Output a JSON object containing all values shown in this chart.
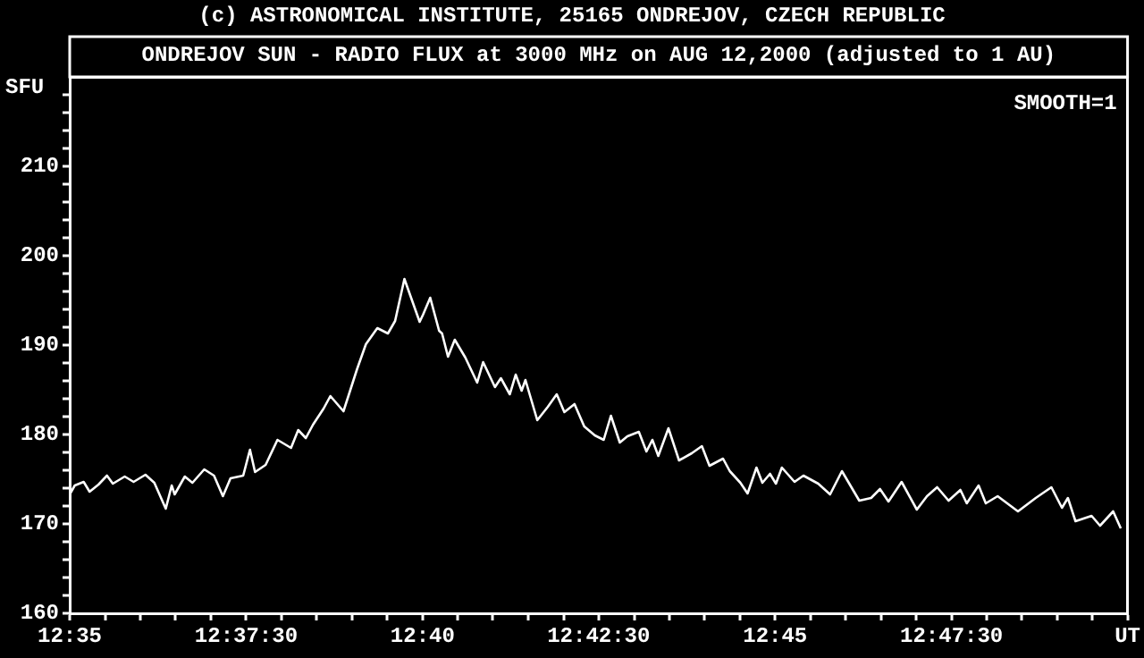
{
  "chart_data": {
    "type": "line",
    "title": "ONDREJOV SUN - RADIO FLUX at 3000 MHz on AUG 12,2000 (adjusted to 1 AU)",
    "ylabel": "SFU",
    "annotations": [
      "(c) ASTRONOMICAL INSTITUTE, 25165 ONDREJOV, CZECH REPUBLIC",
      "SMOOTH=1"
    ],
    "x": [
      12.5833,
      12.5845,
      12.5866,
      12.588,
      12.5901,
      12.5921,
      12.5935,
      12.5963,
      12.5984,
      12.6012,
      12.6033,
      12.606,
      12.6074,
      12.6081,
      12.6105,
      12.6123,
      12.6151,
      12.6174,
      12.6195,
      12.6213,
      12.6243,
      12.6259,
      12.6271,
      12.6296,
      12.6324,
      12.6356,
      12.6373,
      12.6391,
      12.6408,
      12.6433,
      12.6449,
      12.648,
      12.6512,
      12.6533,
      12.656,
      12.6585,
      12.6602,
      12.6624,
      12.666,
      12.6668,
      12.6685,
      12.6706,
      12.6713,
      12.6727,
      12.6743,
      12.6768,
      12.6796,
      12.681,
      12.6838,
      12.6852,
      12.6873,
      12.6887,
      12.6901,
      12.691,
      12.6938,
      12.6963,
      12.6984,
      12.7002,
      12.7026,
      12.7049,
      12.7074,
      12.7095,
      12.7112,
      12.7133,
      12.7151,
      12.7178,
      12.7196,
      12.721,
      12.7224,
      12.7248,
      12.7273,
      12.7303,
      12.7327,
      12.7345,
      12.7377,
      12.7393,
      12.7418,
      12.7435,
      12.7456,
      12.747,
      12.7488,
      12.7502,
      12.7516,
      12.7546,
      12.7567,
      12.7602,
      12.763,
      12.7658,
      12.7699,
      12.7727,
      12.7748,
      12.7768,
      12.7799,
      12.7835,
      12.7859,
      12.7883,
      12.791,
      12.7938,
      12.7953,
      12.7981,
      12.7998,
      12.8026,
      12.8074,
      12.8116,
      12.8153,
      12.8178,
      12.8192,
      12.821,
      12.8248,
      12.8268,
      12.8299,
      12.8317
    ],
    "series": [
      {
        "color": "#ffffff",
        "values": [
          173.3,
          174.3,
          174.7,
          173.6,
          174.4,
          175.4,
          174.5,
          175.3,
          174.7,
          175.5,
          174.6,
          171.7,
          174.3,
          173.3,
          175.3,
          174.6,
          176.1,
          175.4,
          173.1,
          175.1,
          175.4,
          178.3,
          175.8,
          176.6,
          179.4,
          178.5,
          180.5,
          179.6,
          181.1,
          182.9,
          184.3,
          182.6,
          187.3,
          190.1,
          191.9,
          191.3,
          192.7,
          197.4,
          192.6,
          193.4,
          195.3,
          191.6,
          191.3,
          188.7,
          190.6,
          188.6,
          185.8,
          188.1,
          185.3,
          186.3,
          184.5,
          186.7,
          184.9,
          186.1,
          181.6,
          183.1,
          184.5,
          182.5,
          183.4,
          180.9,
          179.9,
          179.4,
          182.1,
          179.1,
          179.8,
          180.3,
          178.1,
          179.4,
          177.6,
          180.7,
          177.1,
          177.9,
          178.7,
          176.5,
          177.3,
          175.9,
          174.6,
          173.4,
          176.3,
          174.6,
          175.6,
          174.5,
          176.3,
          174.7,
          175.4,
          174.5,
          173.3,
          175.9,
          172.6,
          172.9,
          173.9,
          172.5,
          174.7,
          171.6,
          173.1,
          174.1,
          172.6,
          173.8,
          172.3,
          174.3,
          172.3,
          173.1,
          171.4,
          172.9,
          174.1,
          171.8,
          172.9,
          170.3,
          170.9,
          169.8,
          171.4,
          169.5
        ]
      }
    ],
    "xlim": [
      12.5833,
      12.8333
    ],
    "xticks": [
      {
        "value": 12.5833,
        "label": "12:35"
      },
      {
        "value": 12.5917,
        "label": null
      },
      {
        "value": 12.6,
        "label": null
      },
      {
        "value": 12.6083,
        "label": null
      },
      {
        "value": 12.6167,
        "label": null
      },
      {
        "value": 12.625,
        "label": "12:37:30"
      },
      {
        "value": 12.6333,
        "label": null
      },
      {
        "value": 12.6417,
        "label": null
      },
      {
        "value": 12.65,
        "label": null
      },
      {
        "value": 12.6583,
        "label": null
      },
      {
        "value": 12.6667,
        "label": "12:40"
      },
      {
        "value": 12.675,
        "label": null
      },
      {
        "value": 12.6833,
        "label": null
      },
      {
        "value": 12.6917,
        "label": null
      },
      {
        "value": 12.7,
        "label": null
      },
      {
        "value": 12.7083,
        "label": "12:42:30"
      },
      {
        "value": 12.7167,
        "label": null
      },
      {
        "value": 12.725,
        "label": null
      },
      {
        "value": 12.7333,
        "label": null
      },
      {
        "value": 12.7417,
        "label": null
      },
      {
        "value": 12.75,
        "label": "12:45"
      },
      {
        "value": 12.7583,
        "label": null
      },
      {
        "value": 12.7667,
        "label": null
      },
      {
        "value": 12.775,
        "label": null
      },
      {
        "value": 12.7833,
        "label": null
      },
      {
        "value": 12.7917,
        "label": "12:47:30"
      },
      {
        "value": 12.8,
        "label": null
      },
      {
        "value": 12.8083,
        "label": null
      },
      {
        "value": 12.8167,
        "label": null
      },
      {
        "value": 12.825,
        "label": null
      },
      {
        "value": 12.8333,
        "label": "UT"
      }
    ],
    "ylim": [
      160,
      220
    ],
    "yticks": [
      160,
      {
        "value": 162,
        "label": null
      },
      {
        "value": 164,
        "label": null
      },
      {
        "value": 166,
        "label": null
      },
      {
        "value": 168,
        "label": null
      },
      170,
      {
        "value": 172,
        "label": null
      },
      {
        "value": 174,
        "label": null
      },
      {
        "value": 176,
        "label": null
      },
      {
        "value": 178,
        "label": null
      },
      180,
      {
        "value": 182,
        "label": null
      },
      {
        "value": 184,
        "label": null
      },
      {
        "value": 186,
        "label": null
      },
      {
        "value": 188,
        "label": null
      },
      190,
      {
        "value": 192,
        "label": null
      },
      {
        "value": 194,
        "label": null
      },
      {
        "value": 196,
        "label": null
      },
      {
        "value": 198,
        "label": null
      },
      200,
      {
        "value": 202,
        "label": null
      },
      {
        "value": 204,
        "label": null
      },
      {
        "value": 206,
        "label": null
      },
      {
        "value": 208,
        "label": null
      },
      210,
      {
        "value": 212,
        "label": null
      },
      {
        "value": 214,
        "label": null
      },
      {
        "value": 216,
        "label": null
      },
      {
        "value": 218,
        "label": null
      }
    ],
    "grid": false,
    "legend": false,
    "marker": "none",
    "line_style": "solid"
  }
}
